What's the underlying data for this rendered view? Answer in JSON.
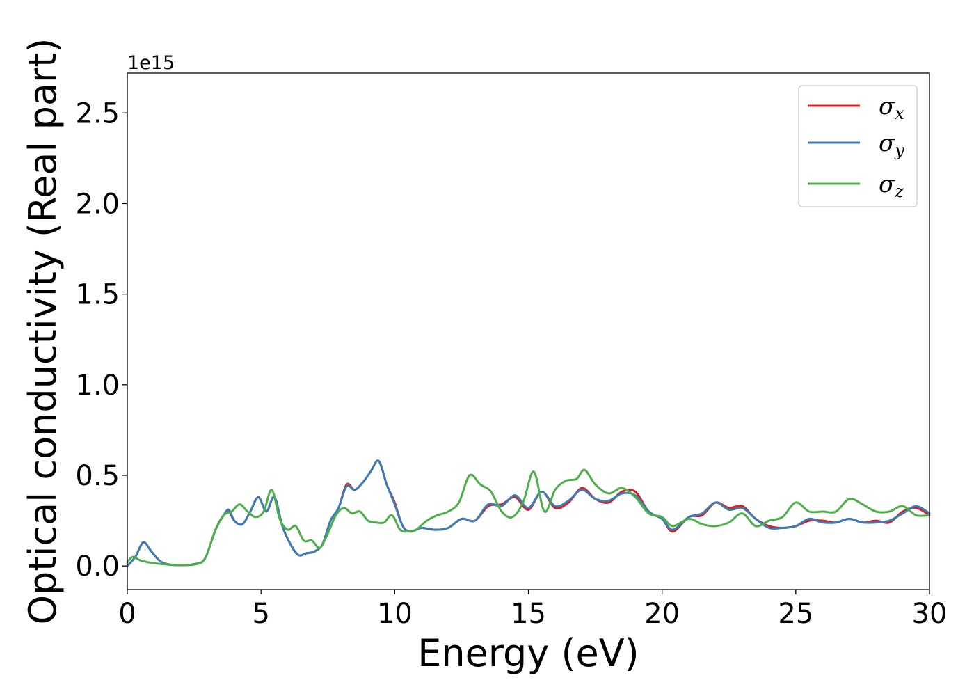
{
  "chart_data": {
    "type": "line",
    "title": "",
    "xlabel": "Energy (eV)",
    "ylabel": "Optical conductivity (Real part)",
    "y_offset_label": "1e15",
    "xlim": [
      0,
      30
    ],
    "ylim": [
      -0.13,
      2.72
    ],
    "x_ticks": [
      0,
      5,
      10,
      15,
      20,
      25,
      30
    ],
    "x_tick_labels": [
      "0",
      "5",
      "10",
      "15",
      "20",
      "25",
      "30"
    ],
    "y_ticks": [
      0.0,
      0.5,
      1.0,
      1.5,
      2.0,
      2.5
    ],
    "y_tick_labels": [
      "0.0",
      "0.5",
      "1.0",
      "1.5",
      "2.0",
      "2.5"
    ],
    "grid": false,
    "legend_position": "top-right",
    "series": [
      {
        "name": "σx",
        "legend_symbol": "σ",
        "legend_subscript": "x",
        "color": "#e41a1c",
        "x": [
          0,
          0.3,
          0.6,
          0.9,
          1.2,
          1.5,
          2,
          2.5,
          2.9,
          3.3,
          3.6,
          3.8,
          4,
          4.3,
          4.6,
          4.9,
          5.2,
          5.5,
          5.8,
          6.1,
          6.4,
          6.7,
          7,
          7.3,
          7.6,
          7.9,
          8.2,
          8.5,
          8.8,
          9.1,
          9.4,
          9.7,
          10,
          10.3,
          10.6,
          11,
          11.5,
          12,
          12.5,
          13,
          13.5,
          14,
          14.5,
          15,
          15.5,
          16,
          16.5,
          17,
          17.5,
          18,
          18.5,
          19,
          19.5,
          20,
          20.4,
          21,
          21.5,
          22,
          22.5,
          23,
          23.5,
          24,
          24.5,
          25,
          25.5,
          26,
          26.5,
          27,
          27.5,
          28,
          28.5,
          29,
          29.5,
          30
        ],
        "y": [
          0,
          0.05,
          0.13,
          0.08,
          0.03,
          0.01,
          0.005,
          0.01,
          0.04,
          0.2,
          0.28,
          0.3,
          0.25,
          0.23,
          0.3,
          0.38,
          0.3,
          0.38,
          0.22,
          0.12,
          0.06,
          0.07,
          0.08,
          0.12,
          0.25,
          0.32,
          0.45,
          0.42,
          0.46,
          0.52,
          0.58,
          0.45,
          0.35,
          0.22,
          0.19,
          0.21,
          0.2,
          0.21,
          0.26,
          0.25,
          0.33,
          0.34,
          0.38,
          0.31,
          0.41,
          0.32,
          0.35,
          0.43,
          0.37,
          0.35,
          0.41,
          0.41,
          0.3,
          0.26,
          0.19,
          0.27,
          0.28,
          0.35,
          0.32,
          0.33,
          0.26,
          0.22,
          0.21,
          0.22,
          0.25,
          0.25,
          0.24,
          0.26,
          0.24,
          0.25,
          0.24,
          0.3,
          0.32,
          0.28
        ]
      },
      {
        "name": "σy",
        "legend_symbol": "σ",
        "legend_subscript": "y",
        "color": "#377eb8",
        "x": [
          0,
          0.3,
          0.6,
          0.9,
          1.2,
          1.5,
          2,
          2.5,
          2.9,
          3.3,
          3.6,
          3.8,
          4,
          4.3,
          4.6,
          4.9,
          5.2,
          5.5,
          5.8,
          6.1,
          6.4,
          6.7,
          7,
          7.3,
          7.6,
          7.9,
          8.2,
          8.5,
          8.8,
          9.1,
          9.4,
          9.7,
          10,
          10.3,
          10.6,
          11,
          11.5,
          12,
          12.5,
          13,
          13.5,
          14,
          14.5,
          15,
          15.5,
          16,
          16.5,
          17,
          17.5,
          18,
          18.5,
          19,
          19.5,
          20,
          20.4,
          21,
          21.5,
          22,
          22.5,
          23,
          23.5,
          24,
          24.5,
          25,
          25.5,
          26,
          26.5,
          27,
          27.5,
          28,
          28.5,
          29,
          29.5,
          30
        ],
        "y": [
          0,
          0.05,
          0.13,
          0.08,
          0.03,
          0.01,
          0.005,
          0.01,
          0.04,
          0.2,
          0.28,
          0.31,
          0.25,
          0.23,
          0.3,
          0.38,
          0.3,
          0.38,
          0.22,
          0.12,
          0.06,
          0.07,
          0.08,
          0.12,
          0.25,
          0.32,
          0.44,
          0.42,
          0.46,
          0.52,
          0.58,
          0.45,
          0.34,
          0.22,
          0.19,
          0.21,
          0.2,
          0.21,
          0.26,
          0.25,
          0.34,
          0.33,
          0.39,
          0.32,
          0.41,
          0.33,
          0.36,
          0.42,
          0.37,
          0.36,
          0.4,
          0.39,
          0.3,
          0.26,
          0.2,
          0.27,
          0.29,
          0.35,
          0.31,
          0.32,
          0.26,
          0.21,
          0.21,
          0.22,
          0.26,
          0.24,
          0.24,
          0.26,
          0.24,
          0.24,
          0.25,
          0.29,
          0.33,
          0.29
        ]
      },
      {
        "name": "σz",
        "legend_symbol": "σ",
        "legend_subscript": "z",
        "color": "#4daf4a",
        "x": [
          0,
          0.2,
          0.5,
          1,
          1.5,
          2,
          2.5,
          2.9,
          3.3,
          3.6,
          3.9,
          4.2,
          4.5,
          4.8,
          5.1,
          5.4,
          5.7,
          6,
          6.3,
          6.6,
          6.9,
          7.2,
          7.5,
          7.8,
          8.1,
          8.4,
          8.7,
          9,
          9.3,
          9.6,
          9.9,
          10.2,
          10.5,
          10.8,
          11.2,
          11.6,
          12,
          12.4,
          12.8,
          13.2,
          13.6,
          14,
          14.4,
          14.8,
          15.2,
          15.6,
          16,
          16.4,
          16.8,
          17.1,
          17.5,
          18,
          18.5,
          19,
          19.5,
          20,
          20.4,
          21,
          21.5,
          22,
          22.5,
          23,
          23.5,
          24,
          24.5,
          25,
          25.5,
          26,
          26.5,
          27,
          27.5,
          28,
          28.5,
          29,
          29.5,
          30
        ],
        "y": [
          0.02,
          0.05,
          0.03,
          0.015,
          0.008,
          0.005,
          0.008,
          0.04,
          0.2,
          0.28,
          0.3,
          0.34,
          0.3,
          0.27,
          0.3,
          0.42,
          0.26,
          0.2,
          0.22,
          0.14,
          0.14,
          0.1,
          0.18,
          0.28,
          0.32,
          0.29,
          0.3,
          0.25,
          0.24,
          0.24,
          0.28,
          0.2,
          0.19,
          0.2,
          0.25,
          0.28,
          0.3,
          0.35,
          0.5,
          0.45,
          0.41,
          0.3,
          0.27,
          0.35,
          0.52,
          0.3,
          0.42,
          0.47,
          0.48,
          0.53,
          0.45,
          0.4,
          0.43,
          0.38,
          0.29,
          0.27,
          0.22,
          0.26,
          0.23,
          0.22,
          0.24,
          0.29,
          0.22,
          0.25,
          0.27,
          0.35,
          0.3,
          0.3,
          0.3,
          0.37,
          0.34,
          0.3,
          0.3,
          0.33,
          0.28,
          0.28
        ]
      }
    ]
  }
}
